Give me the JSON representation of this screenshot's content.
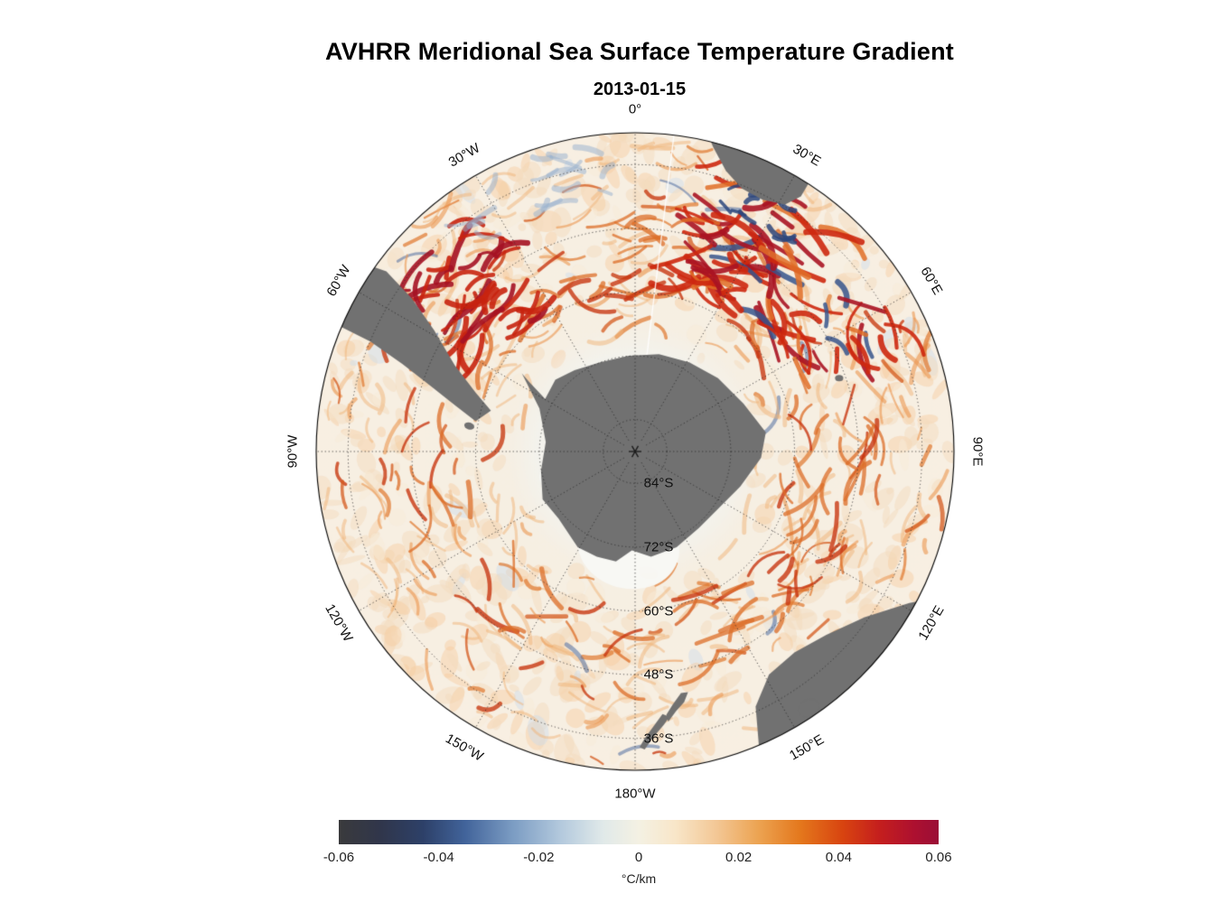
{
  "title": "AVHRR Meridional Sea Surface Temperature Gradient",
  "subtitle": "2013-01-15",
  "chart_data": {
    "type": "heatmap",
    "variable": "Meridional Sea Surface Temperature Gradient",
    "source": "AVHRR",
    "date": "2013-01-15",
    "projection": "south polar stereographic",
    "center_latitude": "90°S",
    "edge_latitude": "30°S",
    "value_range": [
      -0.06,
      0.06
    ],
    "units": "°C/km",
    "colorbar": {
      "label": "°C/km",
      "ticks": [
        "-0.06",
        "-0.04",
        "-0.02",
        "0",
        "0.02",
        "0.04",
        "0.06"
      ],
      "gradient": [
        {
          "pos": 0.0,
          "color": "#3a3a3c"
        },
        {
          "pos": 0.07,
          "color": "#30364b"
        },
        {
          "pos": 0.14,
          "color": "#2d4068"
        },
        {
          "pos": 0.21,
          "color": "#41639a"
        },
        {
          "pos": 0.29,
          "color": "#7b9cc3"
        },
        {
          "pos": 0.37,
          "color": "#b3c9dd"
        },
        {
          "pos": 0.44,
          "color": "#e0e9e9"
        },
        {
          "pos": 0.5,
          "color": "#f4f1e3"
        },
        {
          "pos": 0.56,
          "color": "#f8e6c9"
        },
        {
          "pos": 0.63,
          "color": "#f3c795"
        },
        {
          "pos": 0.7,
          "color": "#eca351"
        },
        {
          "pos": 0.77,
          "color": "#e4771c"
        },
        {
          "pos": 0.84,
          "color": "#d84410"
        },
        {
          "pos": 0.9,
          "color": "#c51f1d"
        },
        {
          "pos": 0.96,
          "color": "#ad1030"
        },
        {
          "pos": 1.0,
          "color": "#9a0e36"
        }
      ]
    },
    "graticule": {
      "longitude_spacing_deg": 30,
      "latitude_spacing_deg": 12,
      "longitude_labels": [
        {
          "text": "0°",
          "deg": 0
        },
        {
          "text": "30°E",
          "deg": 30
        },
        {
          "text": "60°E",
          "deg": 60
        },
        {
          "text": "90°E",
          "deg": 90
        },
        {
          "text": "120°E",
          "deg": 120
        },
        {
          "text": "150°E",
          "deg": 150
        },
        {
          "text": "180°W",
          "deg": 180
        },
        {
          "text": "150°W",
          "deg": 210
        },
        {
          "text": "120°W",
          "deg": 240
        },
        {
          "text": "90°W",
          "deg": 270
        },
        {
          "text": "60°W",
          "deg": 300
        },
        {
          "text": "30°W",
          "deg": 330
        }
      ],
      "latitude_labels": [
        {
          "text": "84°S",
          "radius_frac": 0.1
        },
        {
          "text": "72°S",
          "radius_frac": 0.3
        },
        {
          "text": "60°S",
          "radius_frac": 0.5
        },
        {
          "text": "48°S",
          "radius_frac": 0.7
        },
        {
          "text": "36°S",
          "radius_frac": 0.9
        }
      ]
    },
    "land_masses": [
      "Antarctica",
      "South America",
      "Africa",
      "Australia",
      "Tasmania",
      "New Zealand"
    ],
    "land_color": "#717171",
    "ocean_base_color": "#f8efe2"
  }
}
